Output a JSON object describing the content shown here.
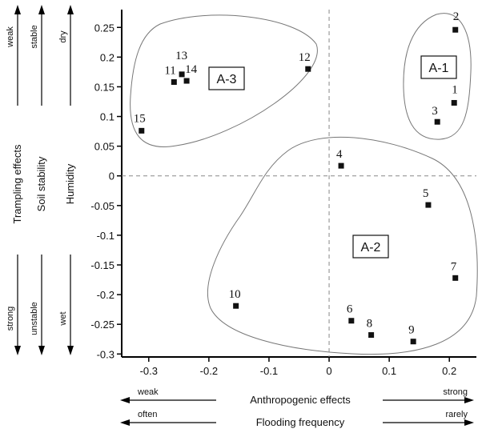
{
  "chart_data": {
    "type": "scatter",
    "x_axis": {
      "ticks": [
        "-0.3",
        "-0.2",
        "-0.1",
        "0",
        "0.1",
        "0.2"
      ],
      "tick_values": [
        -0.3,
        -0.2,
        -0.1,
        0,
        0.1,
        0.2
      ],
      "range": [
        -0.345,
        0.245
      ],
      "labels": [
        {
          "name": "Anthropogenic effects",
          "left": "weak",
          "right": "strong"
        },
        {
          "name": "Flooding frequency",
          "left": "often",
          "right": "rarely"
        }
      ]
    },
    "y_axis": {
      "ticks": [
        "0.25",
        "0.2",
        "0.15",
        "0.1",
        "0.05",
        "0",
        "-0.05",
        "-0.1",
        "-0.15",
        "-0.2",
        "-0.25",
        "-0.3"
      ],
      "tick_values": [
        0.25,
        0.2,
        0.15,
        0.1,
        0.05,
        0,
        -0.05,
        -0.1,
        -0.15,
        -0.2,
        -0.25,
        -0.3
      ],
      "range": [
        -0.305,
        0.28
      ],
      "labels": [
        {
          "name": "Trampling effects",
          "top": "weak",
          "bottom": "strong"
        },
        {
          "name": "Soil stability",
          "top": "stable",
          "bottom": "unstable"
        },
        {
          "name": "Humidity",
          "top": "dry",
          "bottom": "wet"
        }
      ]
    },
    "points": [
      {
        "label": "1",
        "x": 0.208,
        "y": 0.123
      },
      {
        "label": "2",
        "x": 0.21,
        "y": 0.246
      },
      {
        "label": "3",
        "x": 0.18,
        "y": 0.091
      },
      {
        "label": "4",
        "x": 0.02,
        "y": 0.017
      },
      {
        "label": "5",
        "x": 0.165,
        "y": -0.049
      },
      {
        "label": "6",
        "x": 0.037,
        "y": -0.244
      },
      {
        "label": "7",
        "x": 0.21,
        "y": -0.172
      },
      {
        "label": "8",
        "x": 0.07,
        "y": -0.268
      },
      {
        "label": "9",
        "x": 0.14,
        "y": -0.279
      },
      {
        "label": "10",
        "x": -0.155,
        "y": -0.219
      },
      {
        "label": "11",
        "x": -0.258,
        "y": 0.158
      },
      {
        "label": "12",
        "x": -0.035,
        "y": 0.18
      },
      {
        "label": "13",
        "x": -0.245,
        "y": 0.171
      },
      {
        "label": "14",
        "x": -0.237,
        "y": 0.16
      },
      {
        "label": "15",
        "x": -0.312,
        "y": 0.076
      }
    ],
    "groups": [
      {
        "label": "A-1",
        "members": [
          "1",
          "2",
          "3"
        ]
      },
      {
        "label": "A-2",
        "members": [
          "4",
          "5",
          "6",
          "7",
          "8",
          "9",
          "10"
        ]
      },
      {
        "label": "A-3",
        "members": [
          "11",
          "12",
          "13",
          "14",
          "15"
        ]
      }
    ],
    "reference_lines": {
      "x": 0,
      "y": 0,
      "style": "dashed"
    },
    "grid": false
  }
}
